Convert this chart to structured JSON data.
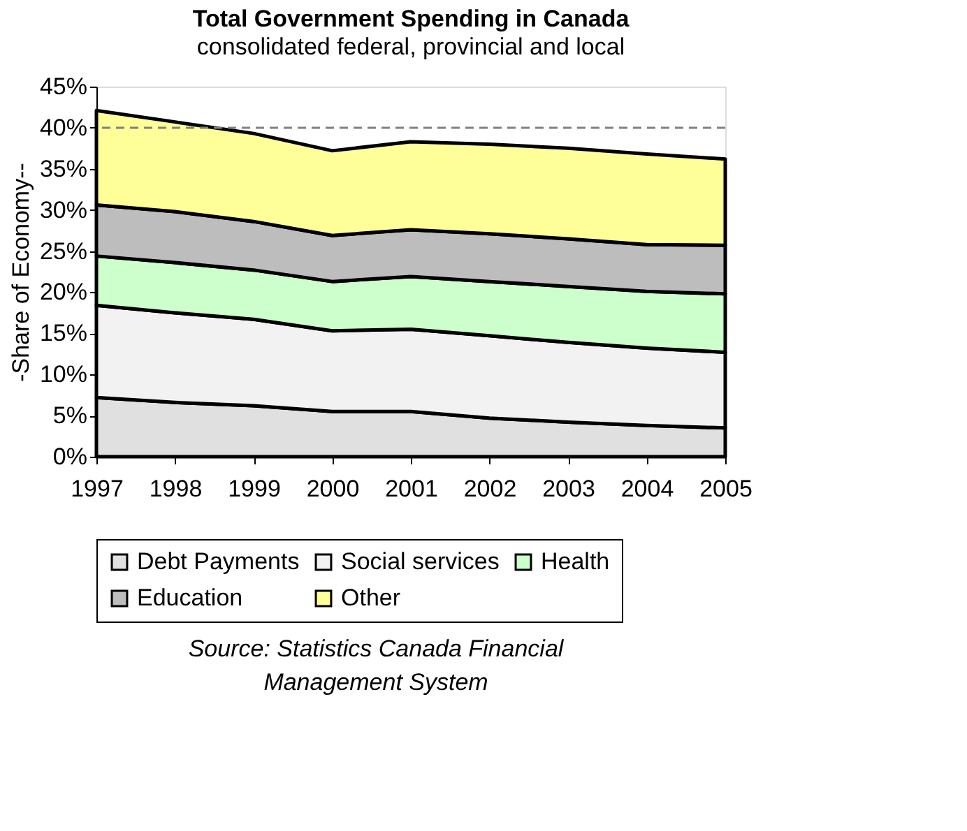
{
  "chart_data": {
    "type": "area",
    "stacked": true,
    "title": "Total Government Spending in Canada",
    "subtitle": "consolidated federal, provincial and local",
    "ylabel": "-Share of Economy--",
    "x": [
      1997,
      1998,
      1999,
      2000,
      2001,
      2002,
      2003,
      2004,
      2005
    ],
    "series": [
      {
        "name": "Debt Payments",
        "color": "#e0e0e0",
        "values": [
          7.2,
          6.6,
          6.2,
          5.5,
          5.5,
          4.7,
          4.2,
          3.8,
          3.5
        ]
      },
      {
        "name": "Social services",
        "color": "#f2f2f2",
        "values": [
          11.2,
          10.9,
          10.5,
          9.8,
          10.0,
          10.0,
          9.7,
          9.4,
          9.2
        ]
      },
      {
        "name": "Health",
        "color": "#ccffcc",
        "values": [
          6.0,
          6.1,
          6.0,
          6.0,
          6.4,
          6.6,
          6.8,
          6.9,
          7.1
        ]
      },
      {
        "name": "Education",
        "color": "#bdbdbd",
        "values": [
          6.2,
          6.2,
          5.9,
          5.6,
          5.7,
          5.8,
          5.8,
          5.7,
          5.9
        ]
      },
      {
        "name": "Other",
        "color": "#ffff99",
        "values": [
          11.5,
          10.9,
          10.7,
          10.3,
          10.7,
          10.9,
          11.0,
          11.0,
          10.5
        ]
      }
    ],
    "xlim": [
      1997,
      2005
    ],
    "xticks": [
      1997,
      1998,
      1999,
      2000,
      2001,
      2002,
      2003,
      2004,
      2005
    ],
    "ylim": [
      0,
      45
    ],
    "yticks": [
      {
        "value": 0,
        "label": "0%"
      },
      {
        "value": 5,
        "label": "5%"
      },
      {
        "value": 10,
        "label": "10%"
      },
      {
        "value": 15,
        "label": "15%"
      },
      {
        "value": 20,
        "label": "20%"
      },
      {
        "value": 25,
        "label": "25%"
      },
      {
        "value": 30,
        "label": "30%"
      },
      {
        "value": 35,
        "label": "35%"
      },
      {
        "value": 40,
        "label": "40%"
      },
      {
        "value": 45,
        "label": "45%"
      }
    ],
    "ref_lines": [
      {
        "axis": "y",
        "value": 40,
        "line_style": "dashed",
        "color": "#808080"
      }
    ],
    "grid": false,
    "legend": "bottom",
    "annotations": [
      "Source: Statistics Canada Financial Management System"
    ]
  }
}
